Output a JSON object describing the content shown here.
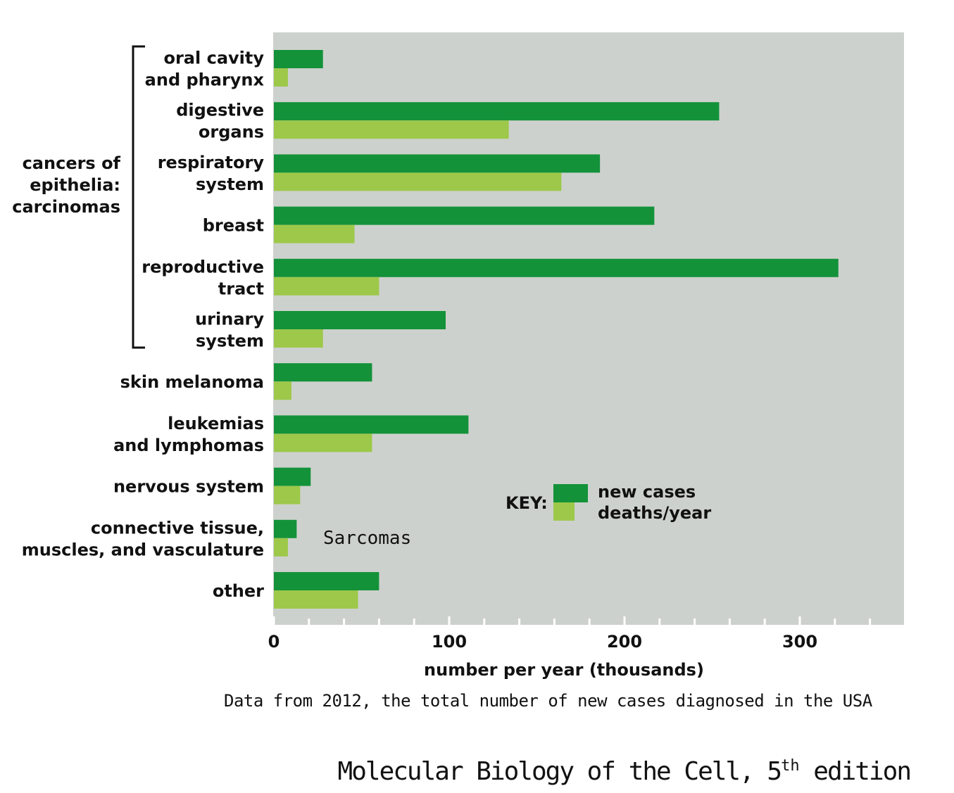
{
  "chart_data": {
    "type": "bar",
    "orientation": "horizontal",
    "xlabel": "number per year (thousands)",
    "xlim": [
      0,
      360
    ],
    "xticks": [
      0,
      100,
      200,
      300
    ],
    "minor_tick_step": 20,
    "categories": [
      [
        "oral cavity",
        "and pharynx"
      ],
      [
        "digestive",
        "organs"
      ],
      [
        "respiratory",
        "system"
      ],
      [
        "breast"
      ],
      [
        "reproductive",
        "tract"
      ],
      [
        "urinary",
        "system"
      ],
      [
        "skin melanoma"
      ],
      [
        "leukemias",
        "and lymphomas"
      ],
      [
        "nervous system"
      ],
      [
        "connective tissue,",
        "muscles, and vasculature"
      ],
      [
        "other"
      ]
    ],
    "series": [
      {
        "name": "new cases",
        "color": "#13923a",
        "values": [
          28,
          254,
          186,
          217,
          322,
          98,
          56,
          111,
          21,
          13,
          60
        ]
      },
      {
        "name": "deaths/year",
        "color": "#9dc84a",
        "values": [
          8,
          134,
          164,
          46,
          60,
          28,
          10,
          56,
          15,
          8,
          48
        ]
      }
    ],
    "group_label": [
      "cancers of",
      "epithelia:",
      "carcinomas"
    ],
    "key_title": "KEY:",
    "annotation": "Sarcomas",
    "plot_background": "#cdd1cd"
  },
  "note": "Data from 2012, the total number of new cases diagnosed in the USA",
  "source": {
    "prefix": "Molecular Biology of the Cell, 5",
    "superscript": "th",
    "suffix": " edition"
  }
}
